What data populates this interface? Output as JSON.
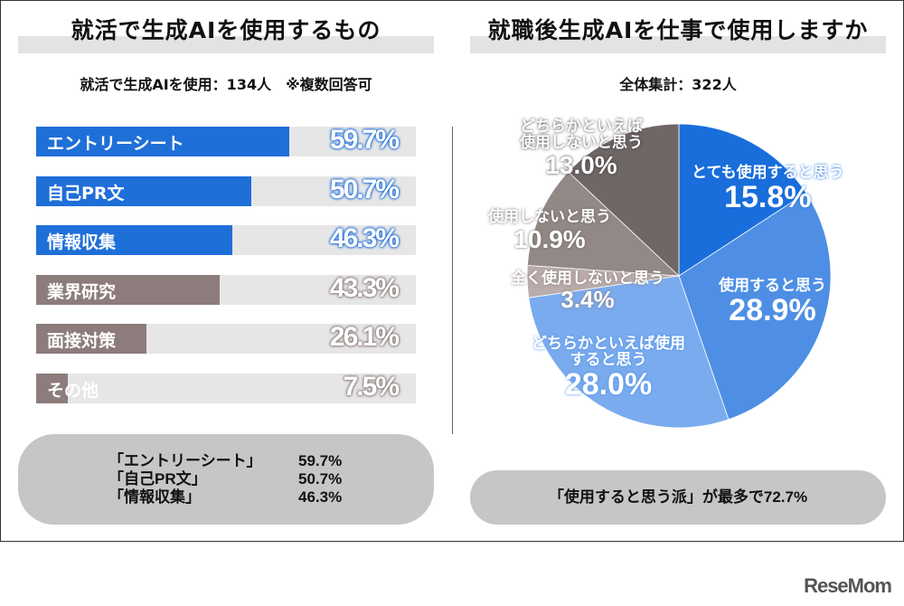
{
  "left": {
    "title": "就活で生成AIを使用するもの",
    "subtitle": "就活で生成AIを使用：134人　※複数回答可",
    "summary": [
      {
        "label": "「エントリーシート」",
        "value": "59.7%"
      },
      {
        "label": "「自己PR文」",
        "value": "50.7%"
      },
      {
        "label": "「情報収集」",
        "value": "46.3%"
      }
    ]
  },
  "right": {
    "title": "就職後生成AIを仕事で使用しますか",
    "subtitle": "全体集計：322人",
    "summary": "「使用すると思う派」が最多で72.7%"
  },
  "logo": "ReseMom",
  "colors": {
    "blue": "#1f6fd8",
    "brown": "#8c7c7b",
    "track": "#e6e6e6"
  },
  "chart_data": [
    {
      "type": "bar",
      "orientation": "horizontal",
      "categories": [
        "エントリーシート",
        "自己PR文",
        "情報収集",
        "業界研究",
        "面接対策",
        "その他"
      ],
      "values": [
        59.7,
        50.7,
        46.3,
        43.3,
        26.1,
        7.5
      ],
      "labels": [
        "59.7%",
        "50.7%",
        "46.3%",
        "43.3%",
        "26.1%",
        "7.5%"
      ],
      "colors": [
        "#1f6fd8",
        "#1f6fd8",
        "#1f6fd8",
        "#8c7c7b",
        "#8c7c7b",
        "#8c7c7b"
      ]
    },
    {
      "type": "pie",
      "categories": [
        "とても使用すると思う",
        "使用すると思う",
        "どちらかといえば使用すると思う",
        "全く使用しないと思う",
        "使用しないと思う",
        "どちらかといえば使用しないと思う"
      ],
      "values": [
        15.8,
        28.9,
        28.0,
        3.4,
        10.9,
        13.0
      ],
      "labels": [
        "15.8%",
        "28.9%",
        "28.0%",
        "3.4%",
        "10.9%",
        "13.0%"
      ],
      "colors": [
        "#1a6edb",
        "#4e8fe5",
        "#7aabee",
        "#b9acaa",
        "#928886",
        "#6f6666"
      ]
    }
  ]
}
